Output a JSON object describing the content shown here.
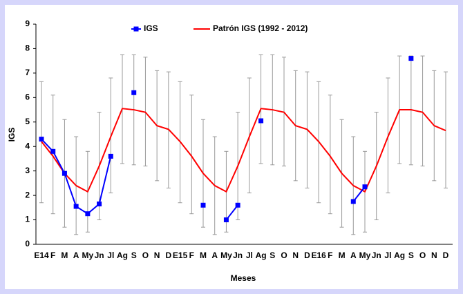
{
  "chart_data": {
    "type": "line",
    "x_label": "Meses",
    "y_label": "IGS",
    "categories": [
      "E14",
      "F",
      "M",
      "A",
      "My",
      "Jn",
      "Jl",
      "Ag",
      "S",
      "O",
      "N",
      "D",
      "E15",
      "F",
      "M",
      "A",
      "My",
      "Jn",
      "Jl",
      "Ag",
      "S",
      "O",
      "N",
      "D",
      "E16",
      "F",
      "M",
      "A",
      "My",
      "Jn",
      "Jl",
      "Ag",
      "S",
      "O",
      "N",
      "D"
    ],
    "ylim": [
      0,
      9
    ],
    "yticks": [
      0,
      1,
      2,
      3,
      4,
      5,
      6,
      7,
      8,
      9
    ],
    "series": [
      {
        "name": "IGS",
        "color": "#0000ff",
        "marker": "square",
        "values": [
          4.3,
          3.8,
          2.9,
          1.55,
          1.25,
          1.65,
          3.6,
          null,
          6.2,
          null,
          null,
          null,
          null,
          null,
          1.6,
          null,
          1.0,
          1.6,
          null,
          5.05,
          null,
          null,
          null,
          null,
          null,
          null,
          null,
          1.75,
          2.35,
          null,
          null,
          null,
          7.6,
          null,
          null,
          null
        ]
      },
      {
        "name": "Patrón IGS (1992 - 2012)",
        "color": "#ff0000",
        "values": [
          4.2,
          3.6,
          2.9,
          2.4,
          2.15,
          3.2,
          4.4,
          5.55,
          5.5,
          5.4,
          4.85,
          4.7,
          4.2,
          3.6,
          2.9,
          2.4,
          2.15,
          3.2,
          4.4,
          5.55,
          5.5,
          5.4,
          4.85,
          4.7,
          4.2,
          3.6,
          2.9,
          2.4,
          2.15,
          3.2,
          4.4,
          5.5,
          5.5,
          5.4,
          4.85,
          4.65
        ],
        "low": [
          1.7,
          1.25,
          0.7,
          0.4,
          0.5,
          1.0,
          2.1,
          3.3,
          3.25,
          3.2,
          2.6,
          2.3,
          1.7,
          1.25,
          0.7,
          0.4,
          0.5,
          1.0,
          2.1,
          3.3,
          3.25,
          3.2,
          2.6,
          2.3,
          1.7,
          1.25,
          0.7,
          0.4,
          0.5,
          1.0,
          2.1,
          3.3,
          3.25,
          3.2,
          2.6,
          2.3
        ],
        "high": [
          6.65,
          6.1,
          5.1,
          4.4,
          3.8,
          5.4,
          6.8,
          7.75,
          7.75,
          7.65,
          7.1,
          7.05,
          6.65,
          6.1,
          5.1,
          4.4,
          3.8,
          5.4,
          6.8,
          7.75,
          7.75,
          7.65,
          7.1,
          7.05,
          6.65,
          6.1,
          5.1,
          4.4,
          3.8,
          5.4,
          6.8,
          7.7,
          7.7,
          7.7,
          7.1,
          7.05
        ]
      }
    ]
  }
}
